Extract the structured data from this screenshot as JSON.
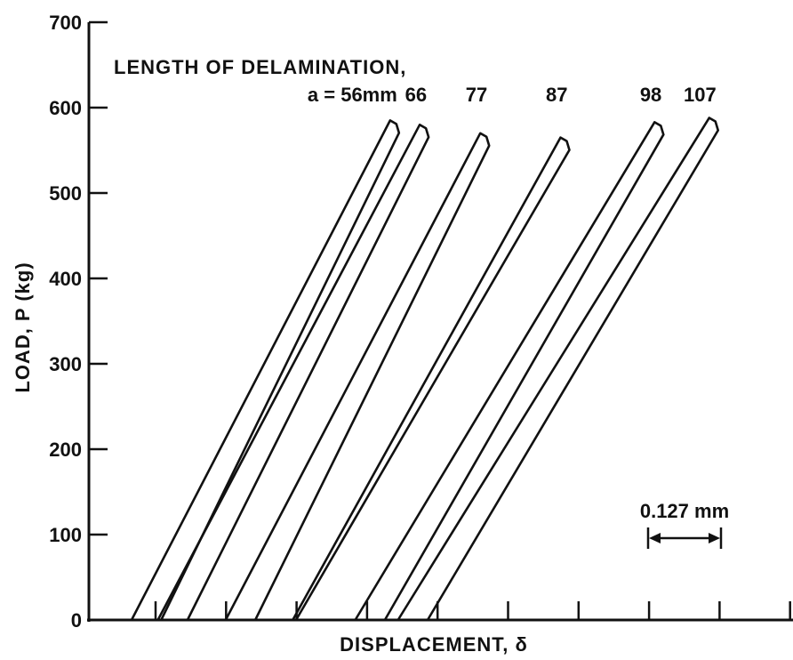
{
  "chart_data": {
    "type": "line",
    "xlabel": "DISPLACEMENT, δ",
    "ylabel": "LOAD, P (kg)",
    "ylim": [
      0,
      700
    ],
    "yticks": [
      0,
      100,
      200,
      300,
      400,
      500,
      600,
      700
    ],
    "x_ticks_count": 10,
    "legend_title": "LENGTH OF DELAMINATION,",
    "scale_bar_label": "0.127 mm",
    "series": [
      {
        "label": "a = 56mm",
        "x0": 0.0,
        "x_peak": 0.393,
        "peak_load": 585,
        "x_return": 0.045
      },
      {
        "label": "66",
        "x0": 0.04,
        "x_peak": 0.438,
        "peak_load": 580,
        "x_return": 0.045
      },
      {
        "label": "77",
        "x0": 0.143,
        "x_peak": 0.53,
        "peak_load": 570,
        "x_return": 0.045
      },
      {
        "label": "87",
        "x0": 0.245,
        "x_peak": 0.652,
        "peak_load": 565,
        "x_return": 0.005
      },
      {
        "label": "98",
        "x0": 0.34,
        "x_peak": 0.795,
        "peak_load": 583,
        "x_return": 0.045
      },
      {
        "label": "107",
        "x0": 0.405,
        "x_peak": 0.878,
        "peak_load": 588,
        "x_return": 0.045
      }
    ]
  }
}
